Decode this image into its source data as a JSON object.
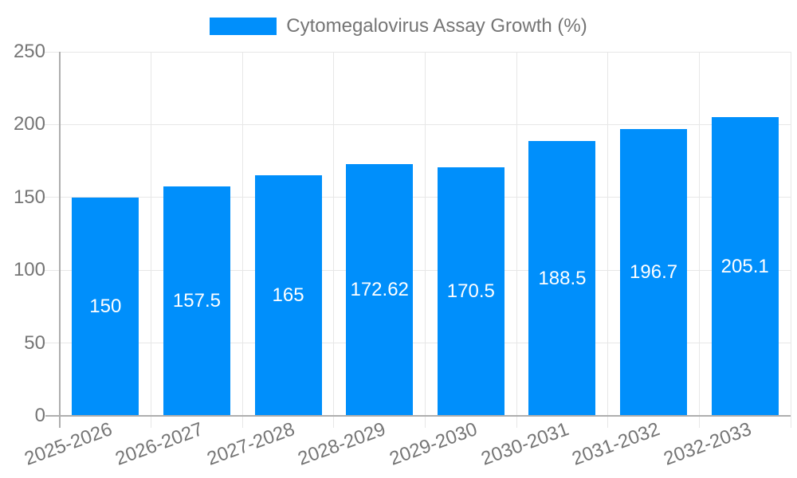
{
  "chart_data": {
    "type": "bar",
    "title": "Cytomegalovirus Assay Growth (%)",
    "categories": [
      "2025-2026",
      "2026-2027",
      "2027-2028",
      "2028-2029",
      "2029-2030",
      "2030-2031",
      "2031-2032",
      "2032-2033"
    ],
    "series": [
      {
        "name": "Cytomegalovirus Assay Growth (%)",
        "values": [
          150,
          157.5,
          165,
          172.62,
          170.5,
          188.5,
          196.7,
          205.1
        ]
      }
    ],
    "values": [
      150,
      157.5,
      165,
      172.62,
      170.5,
      188.5,
      196.7,
      205.1
    ],
    "value_labels": [
      "150",
      "157.5",
      "165",
      "172.62",
      "170.5",
      "188.5",
      "196.7",
      "205.1"
    ],
    "xlabel": "",
    "ylabel": "",
    "ylim": [
      0,
      250
    ],
    "yticks": [
      "0",
      "50",
      "100",
      "150",
      "200",
      "250"
    ],
    "grid": true,
    "legend_position": "top",
    "x_label_rotation_deg": -20,
    "bar_color": "#008ffb",
    "value_label_color": "#ffffff",
    "axis_text_color": "#757575",
    "axis_line_color": "#aeaeae",
    "grid_color": "#e7e7e7",
    "background_color": "#ffffff"
  }
}
